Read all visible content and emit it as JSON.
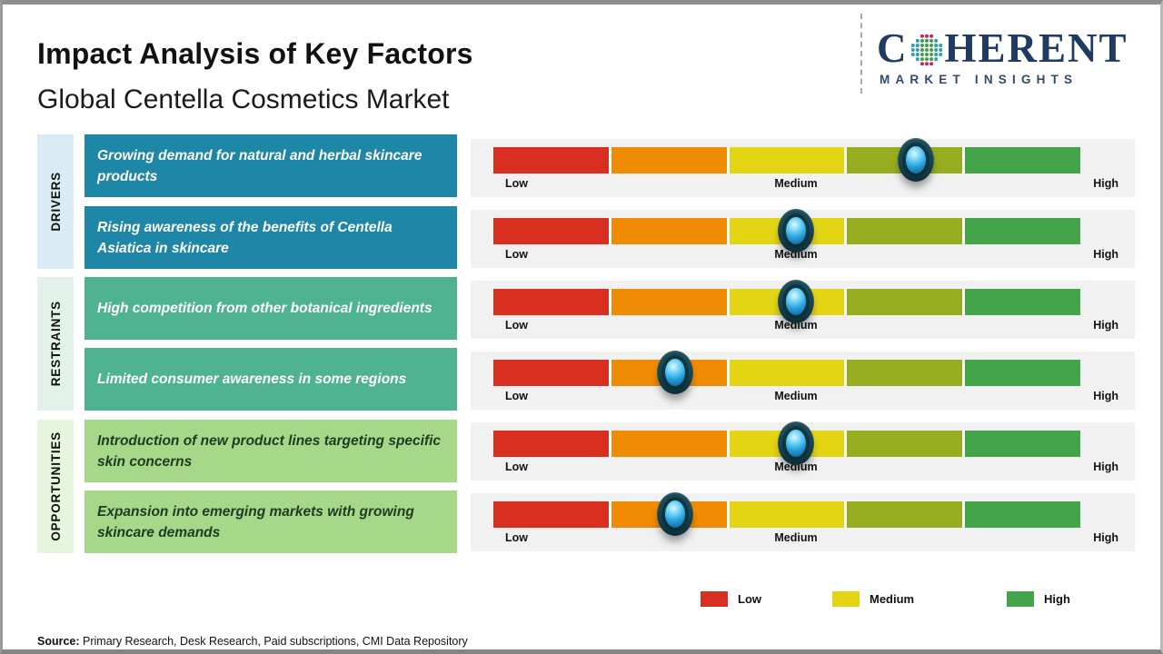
{
  "title": "Impact Analysis of Key Factors",
  "subtitle": "Global Centella Cosmetics Market",
  "logo": {
    "prefix": "C",
    "suffix": "HERENT",
    "tagline": "MARKET INSIGHTS",
    "globe_icon": "dot-globe",
    "color": "#1f3a63"
  },
  "groups": [
    {
      "id": "drivers",
      "label": "DRIVERS"
    },
    {
      "id": "restraints",
      "label": "RESTRAINTS"
    },
    {
      "id": "opportunities",
      "label": "OPPORTUNITIES"
    }
  ],
  "scale": {
    "low": "Low",
    "medium": "Medium",
    "high": "High"
  },
  "rows": [
    {
      "group": "DRIVERS",
      "text": "Growing demand for natural and herbal skincare products",
      "impact_percent": 72,
      "segment_index": 4
    },
    {
      "group": "DRIVERS",
      "text": "Rising awareness of the benefits of Centella Asiatica in skincare",
      "impact_percent": 51.5,
      "segment_index": 3
    },
    {
      "group": "RESTRAINTS",
      "text": "High competition from other botanical ingredients",
      "impact_percent": 51.5,
      "segment_index": 3
    },
    {
      "group": "RESTRAINTS",
      "text": "Limited consumer awareness in some regions",
      "impact_percent": 31,
      "segment_index": 2
    },
    {
      "group": "OPPORTUNITIES",
      "text": "Introduction of new product lines targeting specific skin concerns",
      "impact_percent": 51.5,
      "segment_index": 3
    },
    {
      "group": "OPPORTUNITIES",
      "text": "Expansion into emerging markets with growing skincare demands",
      "impact_percent": 31,
      "segment_index": 2
    }
  ],
  "bar": {
    "segment_colors": [
      "#d92f20",
      "#ef8b04",
      "#e3d414",
      "#97ad20",
      "#43a449"
    ]
  },
  "legend": [
    {
      "label": "Low",
      "color": "#d92f20"
    },
    {
      "label": "Medium",
      "color": "#e3d414"
    },
    {
      "label": "High",
      "color": "#43a449"
    }
  ],
  "source": {
    "label": "Source:",
    "text": "Primary Research, Desk Research, Paid subscriptions, CMI Data Repository"
  },
  "colors": {
    "driver_box": "#1e86a6",
    "restraint_box": "#4fb391",
    "opportunity_box": "#a7d88a",
    "driver_label_bg": "#d9ecf6",
    "restraint_label_bg": "#e3f1eb",
    "opportunity_label_bg": "#e8f5de",
    "panel_bg": "#f1f1f1",
    "knob_outer": "#0e333e",
    "knob_gem": "#29a3dd"
  }
}
